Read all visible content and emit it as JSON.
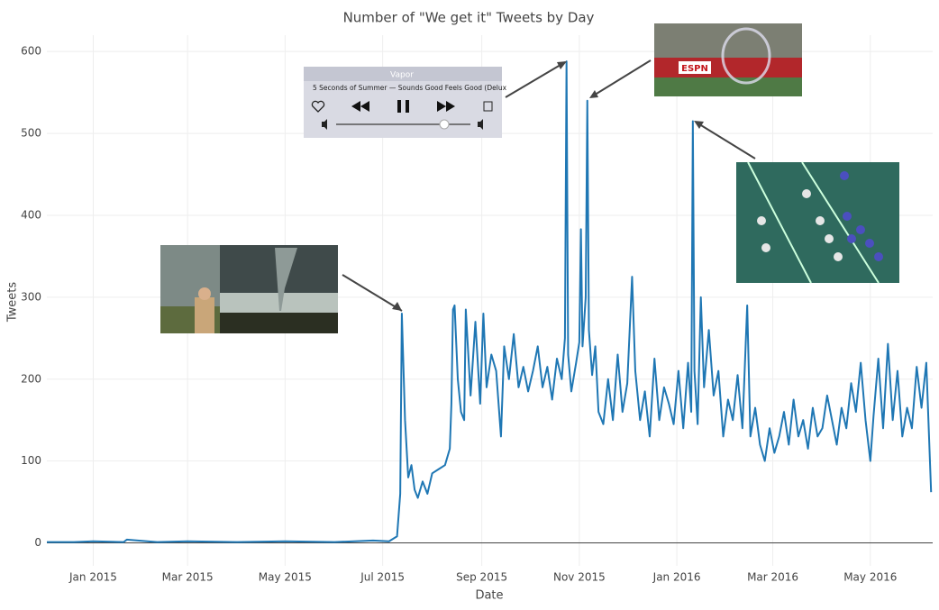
{
  "chart_data": {
    "type": "line",
    "title": "Number of \"We get it\" Tweets by Day",
    "x_label": "Date",
    "y_label": "Tweets",
    "color": "#1f77b4",
    "grid": true,
    "xlim": [
      "2014-12-03",
      "2016-06-09"
    ],
    "ylim": [
      -28,
      620
    ],
    "yticks": [
      0,
      100,
      200,
      300,
      400,
      500,
      600
    ],
    "xticks": [
      {
        "value": "2015-01-01",
        "label": "Jan 2015"
      },
      {
        "value": "2015-03-01",
        "label": "Mar 2015"
      },
      {
        "value": "2015-05-01",
        "label": "May 2015"
      },
      {
        "value": "2015-07-01",
        "label": "Jul 2015"
      },
      {
        "value": "2015-09-01",
        "label": "Sep 2015"
      },
      {
        "value": "2015-11-01",
        "label": "Nov 2015"
      },
      {
        "value": "2016-01-01",
        "label": "Jan 2016"
      },
      {
        "value": "2016-03-01",
        "label": "Mar 2016"
      },
      {
        "value": "2016-05-01",
        "label": "May 2016"
      }
    ],
    "annotations": [
      {
        "title": "Vapor",
        "subtitle": "5 Seconds of Summer — Sounds Good Feels Good (Delux"
      },
      {
        "title": "ESPN"
      }
    ],
    "x": [
      "2014-12-03",
      "2014-12-20",
      "2015-01-01",
      "2015-01-20",
      "2015-01-22",
      "2015-02-10",
      "2015-03-01",
      "2015-04-01",
      "2015-05-01",
      "2015-06-01",
      "2015-06-25",
      "2015-07-05",
      "2015-07-10",
      "2015-07-12",
      "2015-07-13",
      "2015-07-15",
      "2015-07-17",
      "2015-07-19",
      "2015-07-21",
      "2015-07-23",
      "2015-07-26",
      "2015-07-29",
      "2015-08-01",
      "2015-08-05",
      "2015-08-09",
      "2015-08-12",
      "2015-08-13",
      "2015-08-14",
      "2015-08-15",
      "2015-08-17",
      "2015-08-19",
      "2015-08-21",
      "2015-08-22",
      "2015-08-25",
      "2015-08-28",
      "2015-08-31",
      "2015-09-02",
      "2015-09-04",
      "2015-09-07",
      "2015-09-10",
      "2015-09-13",
      "2015-09-15",
      "2015-09-18",
      "2015-09-21",
      "2015-09-24",
      "2015-09-27",
      "2015-09-30",
      "2015-10-03",
      "2015-10-06",
      "2015-10-09",
      "2015-10-12",
      "2015-10-15",
      "2015-10-18",
      "2015-10-21",
      "2015-10-23",
      "2015-10-24",
      "2015-10-25",
      "2015-10-27",
      "2015-10-30",
      "2015-11-01",
      "2015-11-02",
      "2015-11-03",
      "2015-11-05",
      "2015-11-06",
      "2015-11-07",
      "2015-11-09",
      "2015-11-11",
      "2015-11-13",
      "2015-11-16",
      "2015-11-19",
      "2015-11-22",
      "2015-11-25",
      "2015-11-28",
      "2015-12-01",
      "2015-12-04",
      "2015-12-06",
      "2015-12-09",
      "2015-12-12",
      "2015-12-15",
      "2015-12-18",
      "2015-12-21",
      "2015-12-24",
      "2015-12-27",
      "2015-12-30",
      "2016-01-02",
      "2016-01-05",
      "2016-01-08",
      "2016-01-10",
      "2016-01-11",
      "2016-01-12",
      "2016-01-14",
      "2016-01-16",
      "2016-01-18",
      "2016-01-21",
      "2016-01-24",
      "2016-01-27",
      "2016-01-30",
      "2016-02-02",
      "2016-02-05",
      "2016-02-08",
      "2016-02-11",
      "2016-02-14",
      "2016-02-16",
      "2016-02-19",
      "2016-02-22",
      "2016-02-25",
      "2016-02-28",
      "2016-03-02",
      "2016-03-05",
      "2016-03-08",
      "2016-03-11",
      "2016-03-14",
      "2016-03-17",
      "2016-03-20",
      "2016-03-23",
      "2016-03-26",
      "2016-03-29",
      "2016-04-01",
      "2016-04-04",
      "2016-04-07",
      "2016-04-10",
      "2016-04-13",
      "2016-04-16",
      "2016-04-19",
      "2016-04-22",
      "2016-04-25",
      "2016-04-28",
      "2016-05-01",
      "2016-05-03",
      "2016-05-06",
      "2016-05-09",
      "2016-05-12",
      "2016-05-15",
      "2016-05-18",
      "2016-05-21",
      "2016-05-24",
      "2016-05-27",
      "2016-05-30",
      "2016-06-02",
      "2016-06-05",
      "2016-06-08"
    ],
    "values": [
      1,
      1,
      2,
      1,
      4,
      1,
      2,
      1,
      2,
      1,
      3,
      2,
      8,
      60,
      280,
      150,
      80,
      95,
      65,
      55,
      75,
      60,
      85,
      90,
      95,
      115,
      170,
      285,
      290,
      200,
      160,
      150,
      285,
      180,
      270,
      170,
      280,
      190,
      230,
      210,
      130,
      240,
      200,
      255,
      190,
      215,
      185,
      210,
      240,
      190,
      215,
      175,
      225,
      200,
      250,
      588,
      230,
      185,
      220,
      245,
      383,
      240,
      300,
      540,
      260,
      205,
      240,
      160,
      145,
      200,
      150,
      230,
      160,
      195,
      325,
      210,
      150,
      185,
      130,
      225,
      150,
      190,
      170,
      145,
      210,
      140,
      220,
      160,
      515,
      210,
      145,
      300,
      190,
      260,
      180,
      210,
      130,
      175,
      150,
      205,
      140,
      290,
      130,
      165,
      120,
      100,
      140,
      110,
      130,
      160,
      120,
      175,
      130,
      150,
      115,
      165,
      130,
      140,
      180,
      150,
      120,
      165,
      140,
      195,
      160,
      220,
      150,
      100,
      155,
      225,
      140,
      243,
      150,
      210,
      130,
      165,
      140,
      215,
      165,
      220,
      62
    ]
  }
}
